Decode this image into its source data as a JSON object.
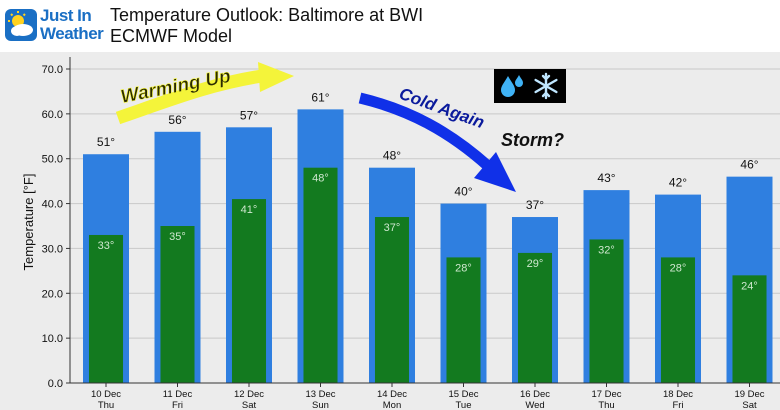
{
  "header": {
    "logo_line1": "Just In",
    "logo_line2": "Weather",
    "title_line1": "Temperature Outlook: Baltimore at BWI",
    "title_line2": "ECMWF Model"
  },
  "annotations": {
    "warming": "Warming Up",
    "cold": "Cold Again",
    "storm": "Storm?",
    "icons": [
      "sweat-droplets-icon",
      "snowflake-icon"
    ]
  },
  "colors": {
    "high_bar": "#2f7fe0",
    "low_bar": "#137a1f",
    "warming_arrow": "#f4f43a",
    "cold_arrow": "#1030e8",
    "plot_bg": "#ececec"
  },
  "chart_data": {
    "type": "bar",
    "title": "Temperature Outlook: Baltimore at BWI",
    "subtitle": "ECMWF Model",
    "ylabel": "Temperature [°F]",
    "xlabel": "",
    "ylim": [
      0,
      70
    ],
    "yticks": [
      "0.0",
      "10.0",
      "20.0",
      "30.0",
      "40.0",
      "50.0",
      "60.0",
      "70.0"
    ],
    "grid": true,
    "categories": [
      {
        "date": "10 Dec",
        "day": "Thu"
      },
      {
        "date": "11 Dec",
        "day": "Fri"
      },
      {
        "date": "12 Dec",
        "day": "Sat"
      },
      {
        "date": "13 Dec",
        "day": "Sun"
      },
      {
        "date": "14 Dec",
        "day": "Mon"
      },
      {
        "date": "15 Dec",
        "day": "Tue"
      },
      {
        "date": "16 Dec",
        "day": "Wed"
      },
      {
        "date": "17 Dec",
        "day": "Thu"
      },
      {
        "date": "18 Dec",
        "day": "Fri"
      },
      {
        "date": "19 Dec",
        "day": "Sat"
      }
    ],
    "series": [
      {
        "values": [
          51,
          56,
          57,
          61,
          48,
          40,
          37,
          43,
          42,
          46
        ],
        "labels": [
          "51°",
          "56°",
          "57°",
          "61°",
          "48°",
          "40°",
          "37°",
          "43°",
          "42°",
          "46°"
        ]
      },
      {
        "values": [
          33,
          35,
          41,
          48,
          37,
          28,
          29,
          32,
          28,
          24
        ],
        "labels": [
          "33°",
          "35°",
          "41°",
          "48°",
          "37°",
          "28°",
          "29°",
          "32°",
          "28°",
          "24°"
        ]
      }
    ]
  }
}
